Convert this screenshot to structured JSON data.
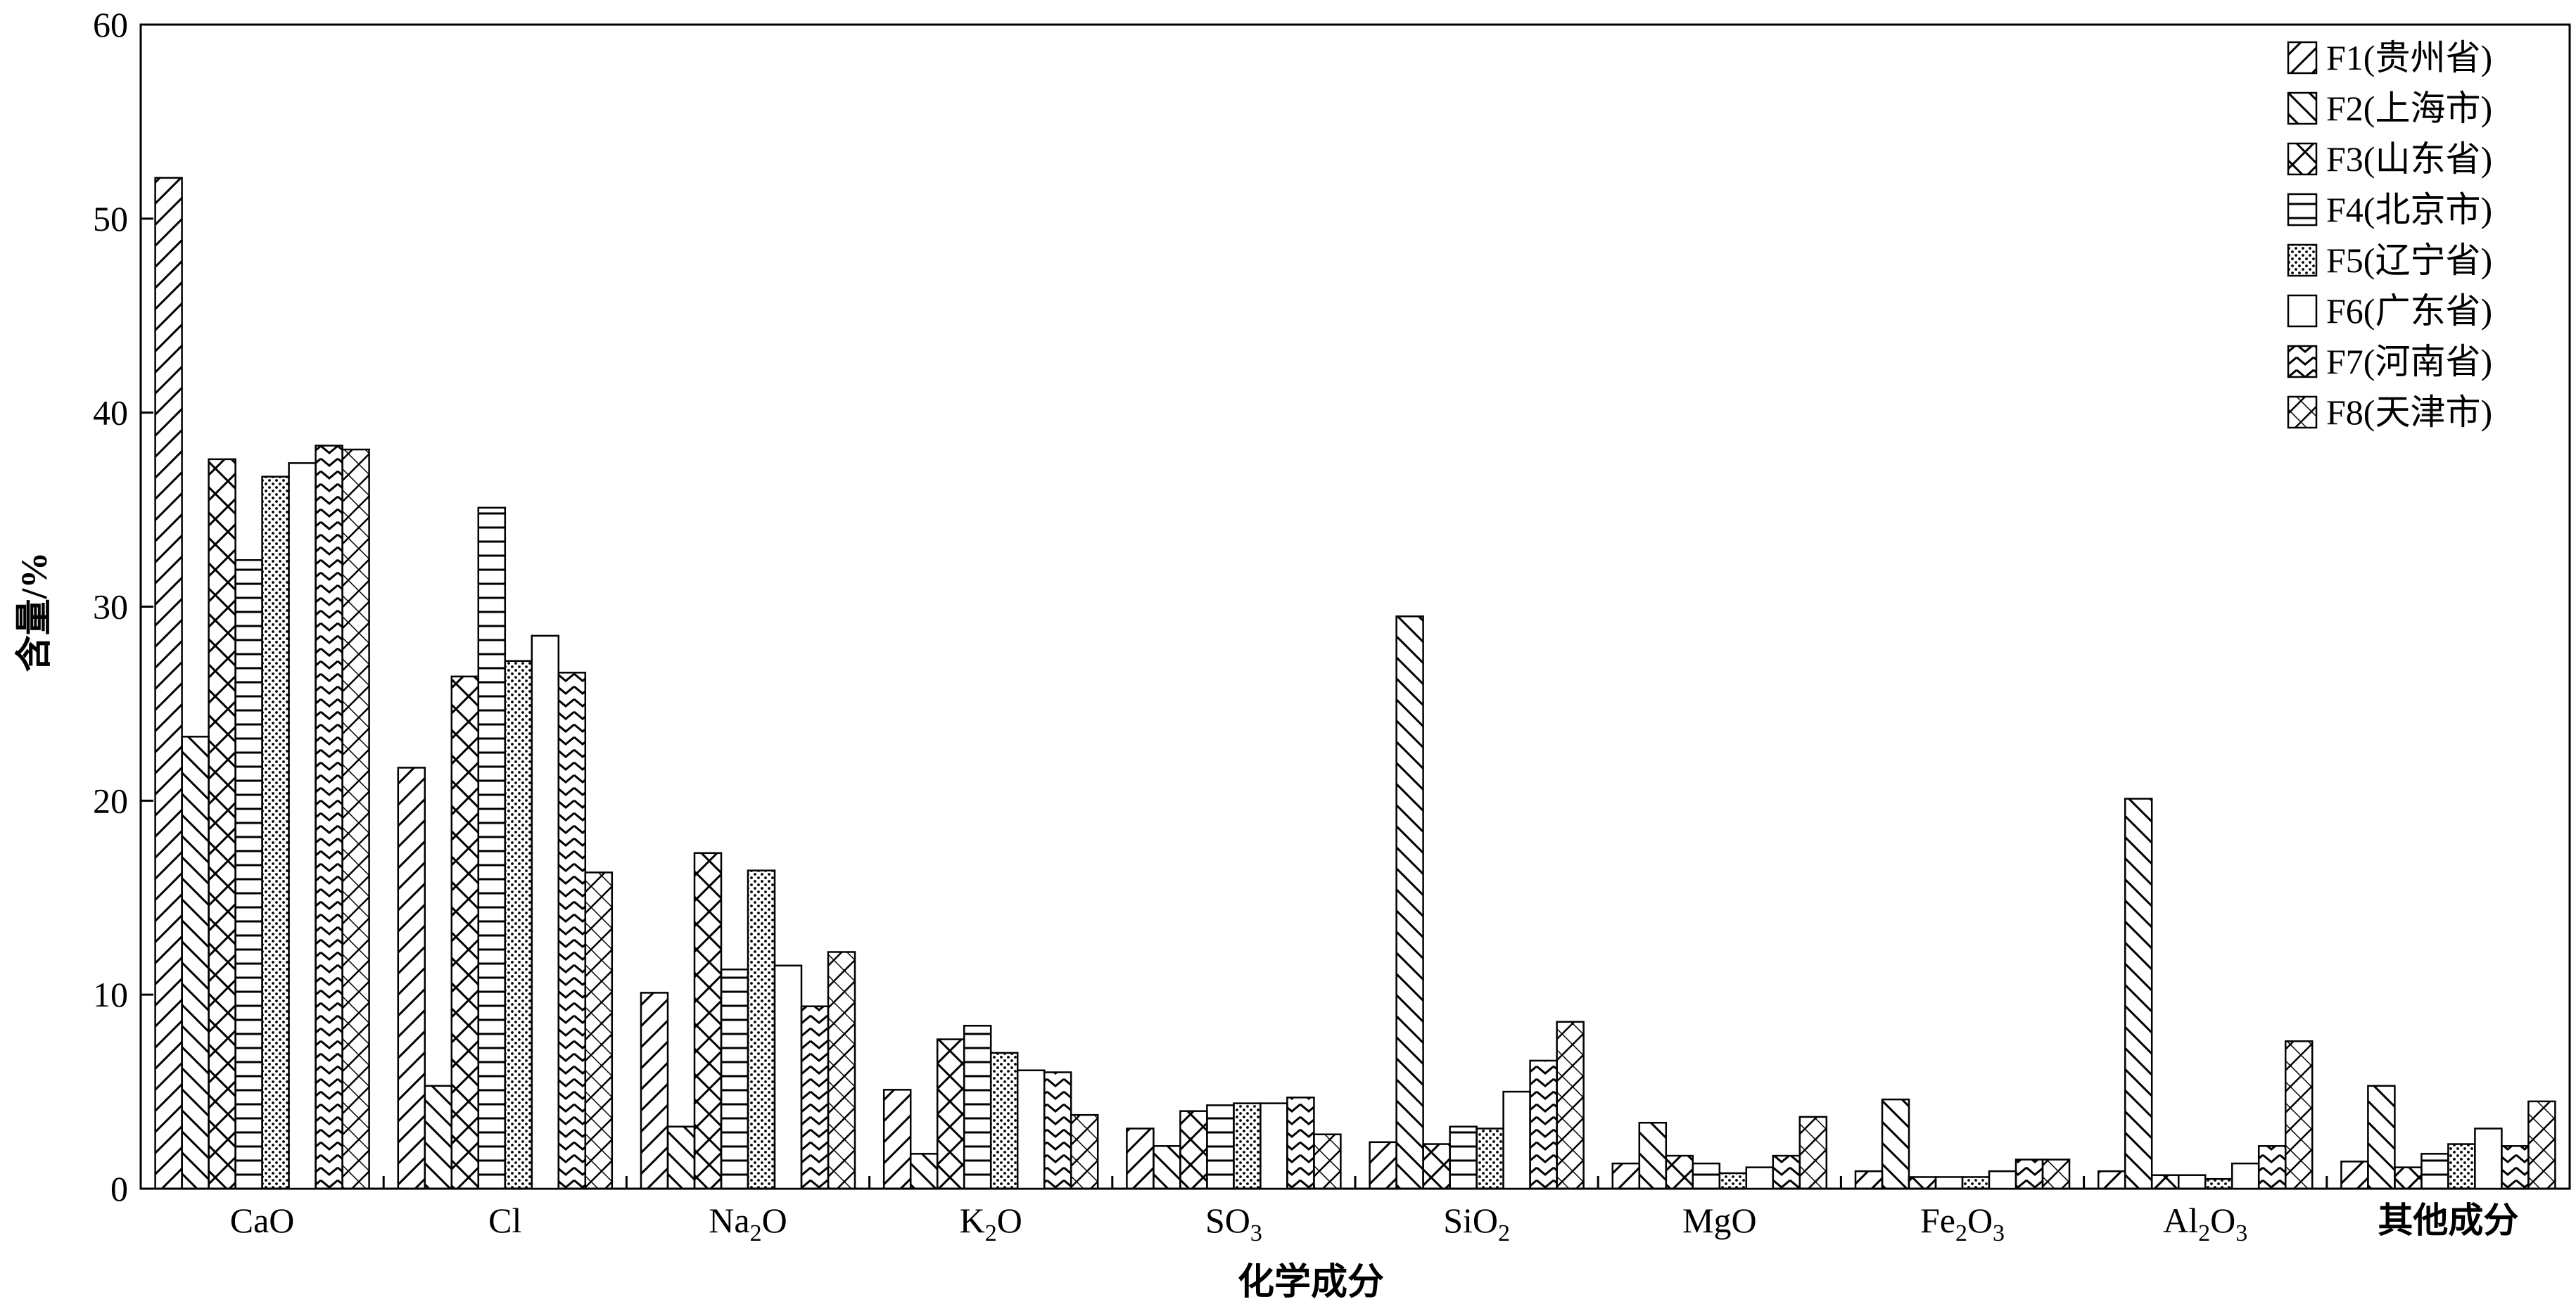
{
  "chart_data": {
    "type": "bar",
    "xlabel": "化学成分",
    "ylabel": "含量/%",
    "ylim": [
      0,
      60
    ],
    "yticks": [
      0,
      10,
      20,
      30,
      40,
      50,
      60
    ],
    "grid": false,
    "legend_position": "top-right",
    "categories": [
      {
        "base": "CaO",
        "sub": ""
      },
      {
        "base": "Cl",
        "sub": ""
      },
      {
        "base": "Na",
        "sub": "2",
        "rest": "O"
      },
      {
        "base": "K",
        "sub": "2",
        "rest": "O"
      },
      {
        "base": "SO",
        "sub": "3",
        "rest": ""
      },
      {
        "base": "SiO",
        "sub": "2",
        "rest": ""
      },
      {
        "base": "MgO",
        "sub": ""
      },
      {
        "base": "Fe",
        "sub": "2",
        "rest": "O",
        "sub2": "3"
      },
      {
        "base": "Al",
        "sub": "2",
        "rest": "O",
        "sub2": "3"
      },
      {
        "base": "其他成分",
        "sub": ""
      }
    ],
    "series": [
      {
        "name": "F1(贵州省)",
        "pattern": "diag-fwd",
        "values": [
          52.1,
          21.7,
          10.1,
          5.1,
          3.1,
          2.4,
          1.3,
          0.9,
          0.9,
          1.4
        ]
      },
      {
        "name": "F2(上海市)",
        "pattern": "diag-back",
        "values": [
          23.3,
          5.3,
          3.2,
          1.8,
          2.2,
          29.5,
          3.4,
          4.6,
          20.1,
          5.3
        ]
      },
      {
        "name": "F3(山东省)",
        "pattern": "cross",
        "values": [
          37.6,
          26.4,
          17.3,
          7.7,
          4.0,
          2.3,
          1.7,
          0.6,
          0.7,
          1.1
        ]
      },
      {
        "name": "F4(北京市)",
        "pattern": "hlines",
        "values": [
          32.4,
          35.1,
          11.3,
          8.4,
          4.3,
          3.2,
          1.3,
          0.6,
          0.7,
          1.8
        ]
      },
      {
        "name": "F5(辽宁省)",
        "pattern": "dots",
        "values": [
          36.7,
          27.2,
          16.4,
          7.0,
          4.4,
          3.1,
          0.8,
          0.6,
          0.5,
          2.3
        ]
      },
      {
        "name": "F6(广东省)",
        "pattern": "empty",
        "values": [
          37.4,
          28.5,
          11.5,
          6.1,
          4.4,
          5.0,
          1.1,
          0.9,
          1.3,
          3.1
        ]
      },
      {
        "name": "F7(河南省)",
        "pattern": "zigzag",
        "values": [
          38.3,
          26.6,
          9.4,
          6.0,
          4.7,
          6.6,
          1.7,
          1.5,
          2.2,
          2.2
        ]
      },
      {
        "name": "F8(天津市)",
        "pattern": "diamond",
        "values": [
          38.1,
          16.3,
          12.2,
          3.8,
          2.8,
          8.6,
          3.7,
          1.5,
          7.6,
          4.5
        ]
      }
    ]
  }
}
